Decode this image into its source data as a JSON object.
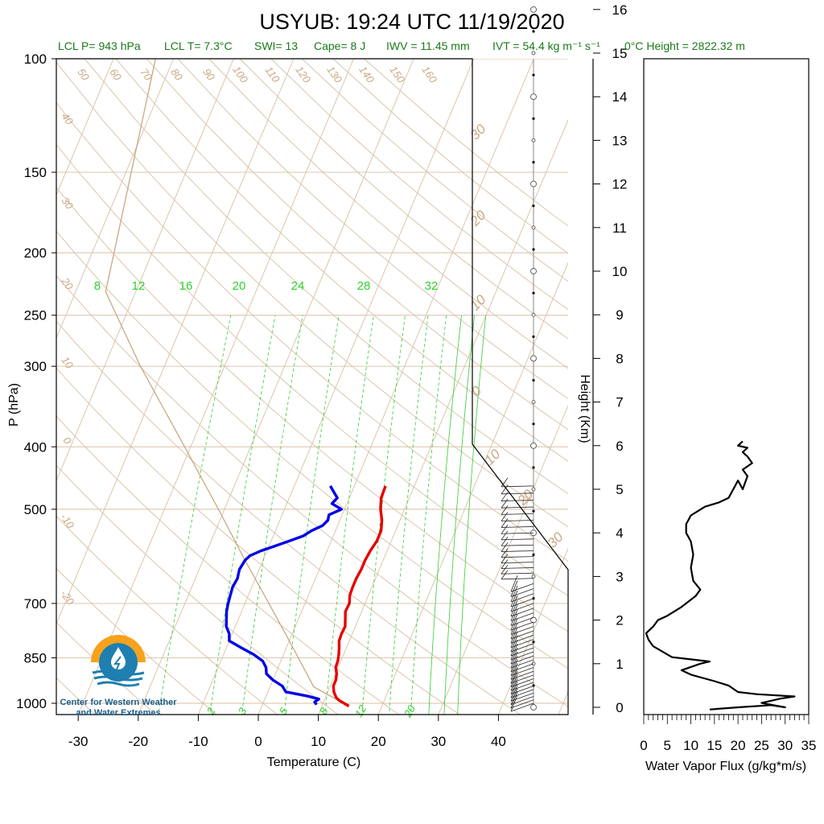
{
  "title": "USYUB: 19:24 UTC 11/19/2020",
  "subtitle": {
    "lcl_p": "LCL P= 943 hPa",
    "lcl_t": "LCL T= 7.3°C",
    "swi": "SWI= 13",
    "cape": "Cape= 8 J",
    "iwv": "IWV = 11.45 mm",
    "ivt": "IVT = 54.4 kg m⁻¹ s⁻¹",
    "freezing_height": "0°C Height = 2822.32 m"
  },
  "logo": {
    "line1": "Center for Western Weather",
    "line2": "and Water Extremes"
  },
  "colors": {
    "temperature": "#e60000",
    "dewpoint": "#0000e6",
    "isotherm": "#d8bfa5",
    "mixing_ratio": "#33cc33",
    "parcel": "#c9a883",
    "logo_orange": "#f7a21b",
    "logo_blue": "#1e7fb0"
  },
  "chart_data": [
    {
      "type": "skew-t",
      "xlabel": "Temperature (C)",
      "ylabel": "P (hPa)",
      "xlim": [
        -34,
        51
      ],
      "ylim": [
        1050,
        100
      ],
      "y_scale": "log",
      "x_ticks": [
        -30,
        -20,
        -10,
        0,
        10,
        20,
        30,
        40
      ],
      "y_ticks": [
        100,
        150,
        200,
        250,
        300,
        400,
        500,
        700,
        850,
        1000
      ],
      "right_axis": {
        "label": "Height (Km)",
        "ticks": [
          0,
          1,
          2,
          3,
          4,
          5,
          6,
          7,
          8,
          9,
          10,
          11,
          12,
          13,
          14,
          15,
          16
        ]
      },
      "dry_adiabat_labels": [
        "50",
        "60",
        "70",
        "80",
        "90",
        "100",
        "110",
        "120",
        "130",
        "140",
        "150",
        "160"
      ],
      "isotherm_left_labels": [
        "40",
        "30",
        "20",
        "10",
        "0",
        "-10",
        "-20"
      ],
      "isotherm_right_labels": [
        "30",
        "20",
        "10",
        "0",
        "10",
        "20",
        "30"
      ],
      "mixing_ratio_labels_top": [
        "8",
        "12",
        "16",
        "20",
        "24",
        "28",
        "32"
      ],
      "mixing_ratio_labels_bottom": [
        "2",
        "3",
        "5",
        "8",
        "12",
        "20"
      ],
      "series": [
        {
          "name": "Temperature",
          "points": [
            [
              1010,
              14.5
            ],
            [
              1000,
              13.5
            ],
            [
              990,
              12.5
            ],
            [
              980,
              11.8
            ],
            [
              960,
              11.0
            ],
            [
              940,
              10.5
            ],
            [
              920,
              10.5
            ],
            [
              900,
              10.2
            ],
            [
              880,
              9.6
            ],
            [
              860,
              9.5
            ],
            [
              840,
              9.2
            ],
            [
              820,
              8.8
            ],
            [
              800,
              8.3
            ],
            [
              780,
              8.2
            ],
            [
              760,
              8.3
            ],
            [
              740,
              7.8
            ],
            [
              720,
              7.3
            ],
            [
              700,
              7.4
            ],
            [
              680,
              6.9
            ],
            [
              660,
              6.8
            ],
            [
              640,
              6.8
            ],
            [
              620,
              7.0
            ],
            [
              600,
              7.0
            ],
            [
              580,
              7.2
            ],
            [
              560,
              7.6
            ],
            [
              540,
              7.6
            ],
            [
              520,
              7.0
            ],
            [
              500,
              6.0
            ],
            [
              480,
              5.3
            ],
            [
              460,
              5.2
            ]
          ]
        },
        {
          "name": "Dewpoint",
          "points": [
            [
              1005,
              9.0
            ],
            [
              995,
              8.5
            ],
            [
              985,
              9.0
            ],
            [
              975,
              7.0
            ],
            [
              960,
              3.0
            ],
            [
              940,
              2.0
            ],
            [
              920,
              0.0
            ],
            [
              900,
              -1.5
            ],
            [
              880,
              -2.0
            ],
            [
              860,
              -3.0
            ],
            [
              840,
              -5.0
            ],
            [
              820,
              -7.5
            ],
            [
              800,
              -10.0
            ],
            [
              780,
              -10.5
            ],
            [
              760,
              -11.5
            ],
            [
              740,
              -12.0
            ],
            [
              720,
              -12.5
            ],
            [
              700,
              -12.8
            ],
            [
              680,
              -13.0
            ],
            [
              660,
              -13.2
            ],
            [
              640,
              -13.0
            ],
            [
              620,
              -13.3
            ],
            [
              600,
              -13.0
            ],
            [
              590,
              -12.5
            ],
            [
              580,
              -11.0
            ],
            [
              570,
              -9.0
            ],
            [
              560,
              -7.0
            ],
            [
              550,
              -5.0
            ],
            [
              540,
              -4.0
            ],
            [
              530,
              -2.5
            ],
            [
              520,
              -2.0
            ],
            [
              510,
              -2.2
            ],
            [
              500,
              -0.5
            ],
            [
              490,
              -2.5
            ],
            [
              480,
              -2.0
            ],
            [
              470,
              -3.0
            ],
            [
              460,
              -4.0
            ]
          ]
        },
        {
          "name": "Parcel",
          "points": [
            [
              1010,
              14.5
            ],
            [
              943,
              7.3
            ],
            [
              800,
              0.0
            ],
            [
              700,
              -6.0
            ],
            [
              600,
              -13.0
            ],
            [
              500,
              -21.0
            ],
            [
              400,
              -31.0
            ],
            [
              300,
              -44.0
            ],
            [
              230,
              -55.0
            ],
            [
              100,
              -63.0
            ]
          ]
        }
      ]
    },
    {
      "type": "line",
      "xlabel": "Water Vapor Flux (g/kg*m/s)",
      "ylabel": "",
      "xlim": [
        0,
        35
      ],
      "ylim": [
        -0.15,
        16.3
      ],
      "x_ticks": [
        0,
        5,
        10,
        15,
        20,
        25,
        30,
        35
      ],
      "series": [
        {
          "name": "",
          "points": [
            [
              14,
              -0.05
            ],
            [
              20,
              0.0
            ],
            [
              27,
              0.05
            ],
            [
              30,
              0.0
            ],
            [
              25,
              0.1
            ],
            [
              29,
              0.2
            ],
            [
              32,
              0.25
            ],
            [
              24,
              0.3
            ],
            [
              20,
              0.35
            ],
            [
              18,
              0.5
            ],
            [
              15,
              0.6
            ],
            [
              10,
              0.75
            ],
            [
              8,
              0.85
            ],
            [
              12,
              1.0
            ],
            [
              14,
              1.05
            ],
            [
              10,
              1.1
            ],
            [
              6,
              1.15
            ],
            [
              2,
              1.4
            ],
            [
              1,
              1.55
            ],
            [
              0.5,
              1.7
            ],
            [
              2,
              1.85
            ],
            [
              3,
              2.0
            ],
            [
              5,
              2.1
            ],
            [
              8,
              2.3
            ],
            [
              11,
              2.55
            ],
            [
              12,
              2.7
            ],
            [
              10.5,
              2.9
            ],
            [
              10,
              3.2
            ],
            [
              10.5,
              3.5
            ],
            [
              10,
              3.8
            ],
            [
              9,
              4.0
            ],
            [
              9,
              4.2
            ],
            [
              10,
              4.4
            ],
            [
              13,
              4.6
            ],
            [
              16,
              4.7
            ],
            [
              18,
              4.8
            ],
            [
              19,
              5.0
            ],
            [
              20,
              5.2
            ],
            [
              21,
              5.0
            ],
            [
              22,
              5.3
            ],
            [
              21,
              5.45
            ],
            [
              23,
              5.6
            ],
            [
              22,
              5.75
            ],
            [
              21,
              5.85
            ],
            [
              22,
              5.95
            ],
            [
              20,
              6.0
            ],
            [
              21,
              6.1
            ]
          ]
        }
      ]
    }
  ]
}
